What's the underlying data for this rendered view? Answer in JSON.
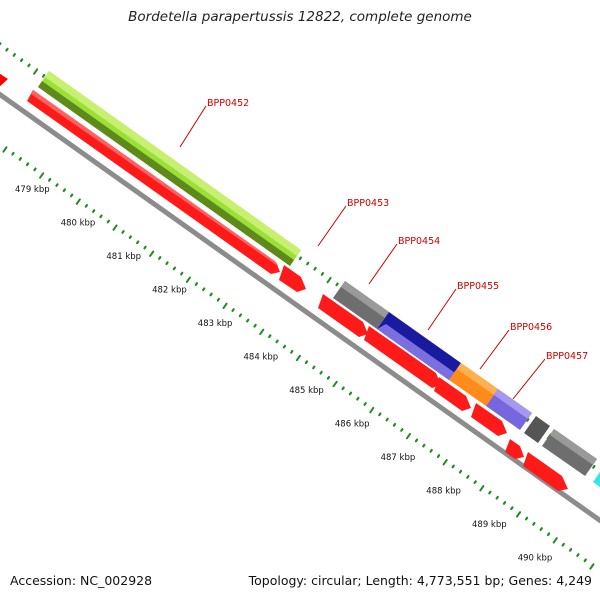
{
  "title": "Bordetella parapertussis 12822, complete genome",
  "footer": {
    "accession": "Accession: NC_002928",
    "summary": "Topology: circular; Length: 4,773,551 bp; Genes: 4,249"
  },
  "ruler": {
    "unit": "kbp",
    "ticks": [
      {
        "kbp": 479,
        "label": "479 kbp"
      },
      {
        "kbp": 480,
        "label": "480 kbp"
      },
      {
        "kbp": 481,
        "label": "481 kbp"
      },
      {
        "kbp": 482,
        "label": "482 kbp"
      },
      {
        "kbp": 483,
        "label": "483 kbp"
      },
      {
        "kbp": 484,
        "label": "484 kbp"
      },
      {
        "kbp": 485,
        "label": "485 kbp"
      },
      {
        "kbp": 486,
        "label": "486 kbp"
      },
      {
        "kbp": 487,
        "label": "487 kbp"
      },
      {
        "kbp": 488,
        "label": "488 kbp"
      },
      {
        "kbp": 489,
        "label": "489 kbp"
      },
      {
        "kbp": 490,
        "label": "490 kbp"
      }
    ]
  },
  "gene_labels": [
    "BPP0452",
    "BPP0453",
    "BPP0454",
    "BPP0455",
    "BPP0456",
    "BPP0457"
  ],
  "colors": {
    "cds": "#ff0000",
    "backbone": "#8c8c8c",
    "label": "#cc0000",
    "tick": "#228b22",
    "lime": "#99ee33",
    "gray_feature": "#6e6e6e",
    "navy": "#1a1aa0",
    "orange": "#ff8c1a",
    "purple": "#7766dd",
    "cyan": "#33e6ee"
  }
}
